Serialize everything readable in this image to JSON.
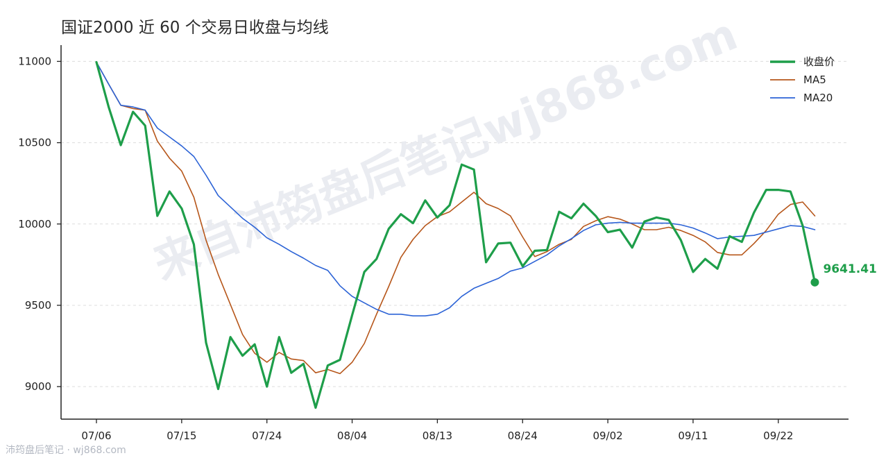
{
  "title": "国证2000 近 60 个交易日收盘与均线",
  "footer": "沛筠盘后笔记 · wj868.com",
  "watermark": "来自沛筠盘后笔记wj868.com",
  "colors": {
    "close": "#1e9e4a",
    "ma5": "#b6561a",
    "ma20": "#2c63d6",
    "axis": "#222222",
    "grid": "#dcdcdc"
  },
  "chart_data": {
    "type": "line",
    "title": "国证2000 近 60 个交易日收盘与均线",
    "ylim": [
      8800,
      11100
    ],
    "yticks": [
      9000,
      9500,
      10000,
      10500,
      11000
    ],
    "xtick_labels": [
      {
        "index": 0,
        "label": "07/06"
      },
      {
        "index": 7,
        "label": "07/15"
      },
      {
        "index": 14,
        "label": "07/24"
      },
      {
        "index": 21,
        "label": "08/04"
      },
      {
        "index": 28,
        "label": "08/13"
      },
      {
        "index": 35,
        "label": "08/24"
      },
      {
        "index": 42,
        "label": "09/02"
      },
      {
        "index": 49,
        "label": "09/11"
      },
      {
        "index": 56,
        "label": "09/22"
      }
    ],
    "grid": "horizontal dashed",
    "legend_position": "top-right",
    "last_value_label": "9641.41",
    "series": [
      {
        "name": "收盘价",
        "values": [
          10995,
          10720,
          10485,
          10690,
          10605,
          10050,
          10200,
          10095,
          9875,
          9270,
          8985,
          9305,
          9190,
          9260,
          9000,
          9305,
          9085,
          9140,
          8870,
          9130,
          9165,
          9440,
          9705,
          9785,
          9970,
          10060,
          10005,
          10145,
          10040,
          10115,
          10365,
          10335,
          9765,
          9880,
          9885,
          9740,
          9835,
          9840,
          10075,
          10035,
          10125,
          10050,
          9950,
          9965,
          9855,
          10015,
          10040,
          10025,
          9900,
          9705,
          9785,
          9725,
          9925,
          9890,
          10070,
          10210,
          10210,
          10200,
          9990,
          9641.41
        ]
      },
      {
        "name": "MA5",
        "values": [
          10995,
          10860,
          10730,
          10710,
          10700,
          10510,
          10405,
          10325,
          10165,
          9900,
          9690,
          9505,
          9320,
          9205,
          9150,
          9210,
          9170,
          9160,
          9085,
          9105,
          9080,
          9150,
          9265,
          9445,
          9615,
          9795,
          9905,
          9990,
          10045,
          10075,
          10135,
          10195,
          10125,
          10095,
          10050,
          9920,
          9800,
          9830,
          9875,
          9905,
          9985,
          10020,
          10045,
          10030,
          10000,
          9965,
          9965,
          9980,
          9960,
          9930,
          9890,
          9825,
          9810,
          9810,
          9880,
          9960,
          10060,
          10120,
          10135,
          10050
        ]
      },
      {
        "name": "MA20",
        "values": [
          10995,
          10860,
          10730,
          10720,
          10700,
          10590,
          10535,
          10480,
          10415,
          10300,
          10175,
          10105,
          10035,
          9980,
          9915,
          9875,
          9830,
          9790,
          9745,
          9715,
          9620,
          9555,
          9515,
          9475,
          9445,
          9445,
          9435,
          9435,
          9445,
          9485,
          9555,
          9605,
          9635,
          9665,
          9710,
          9730,
          9770,
          9810,
          9865,
          9910,
          9960,
          9995,
          10005,
          10010,
          10005,
          10005,
          10005,
          10005,
          9995,
          9975,
          9945,
          9910,
          9920,
          9925,
          9930,
          9950,
          9970,
          9990,
          9985,
          9965
        ]
      }
    ]
  }
}
